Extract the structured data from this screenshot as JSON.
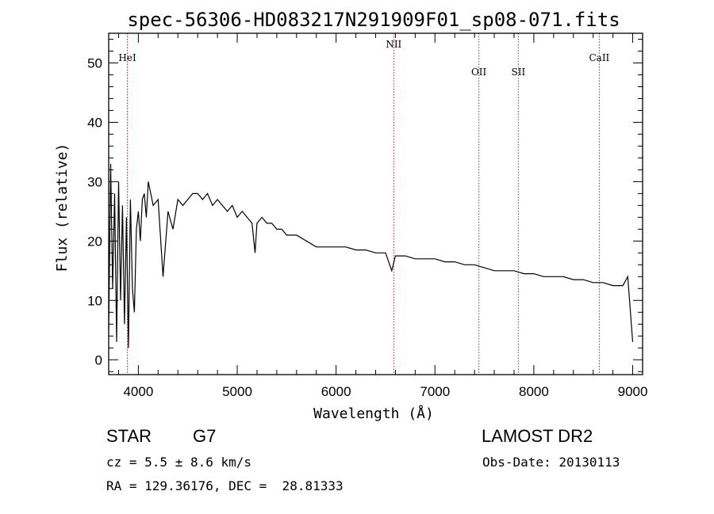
{
  "chart_data": {
    "type": "line",
    "title": "spec-56306-HD083217N291909F01_sp08-071.fits",
    "xlabel": "Wavelength (Å)",
    "ylabel": "Flux (relative)",
    "xlim": [
      3700,
      9100
    ],
    "ylim": [
      -2.5,
      55
    ],
    "x_ticks": [
      4000,
      5000,
      6000,
      7000,
      8000,
      9000
    ],
    "y_ticks": [
      0,
      10,
      20,
      30,
      40,
      50
    ],
    "grid": false,
    "line_color": "#000000",
    "marker_color": "#b22222",
    "series": [
      {
        "x": [
          3700,
          3720,
          3740,
          3760,
          3780,
          3800,
          3820,
          3840,
          3860,
          3880,
          3900,
          3920,
          3940,
          3960,
          3980,
          4000,
          4020,
          4040,
          4060,
          4080,
          4100,
          4150,
          4200,
          4250,
          4300,
          4350,
          4400,
          4450,
          4500,
          4550,
          4600,
          4650,
          4700,
          4750,
          4800,
          4850,
          4900,
          4950,
          5000,
          5050,
          5100,
          5150,
          5180,
          5200,
          5250,
          5300,
          5350,
          5400,
          5450,
          5500,
          5600,
          5700,
          5800,
          5900,
          6000,
          6100,
          6200,
          6300,
          6400,
          6500,
          6563,
          6600,
          6700,
          6800,
          6900,
          7000,
          7100,
          7200,
          7300,
          7400,
          7500,
          7600,
          7700,
          7800,
          7900,
          8000,
          8100,
          8200,
          8300,
          8400,
          8500,
          8600,
          8700,
          8800,
          8900,
          8950,
          9000
        ],
        "y": [
          5,
          33,
          12,
          28,
          3,
          30,
          10,
          26,
          6,
          24,
          2,
          27,
          12,
          8,
          22,
          25,
          20,
          27,
          28,
          24,
          30,
          26,
          27,
          14,
          25,
          22,
          27,
          26,
          27,
          28,
          28,
          27,
          28,
          26,
          27,
          26,
          25,
          26,
          24,
          25,
          24,
          23,
          18,
          23,
          24,
          23,
          23,
          22,
          22,
          21,
          21,
          20,
          19,
          19,
          19,
          19,
          18.5,
          18.5,
          18,
          18,
          15,
          17.5,
          17.5,
          17,
          17,
          17,
          16.5,
          16.5,
          16,
          16,
          15.5,
          15,
          15,
          15,
          14.5,
          14.5,
          14,
          14,
          14,
          13.5,
          13.5,
          13,
          13,
          12.5,
          12.5,
          14,
          3
        ]
      }
    ],
    "line_markers": [
      {
        "label": "HeI",
        "x": 3889
      },
      {
        "label": "NII",
        "x": 6583
      },
      {
        "label": "OII",
        "x": 7444
      },
      {
        "label": "SII",
        "x": 7843
      },
      {
        "label": "CaII",
        "x": 8662
      }
    ]
  },
  "info": {
    "object_class": "STAR",
    "subclass": "G7",
    "survey": "LAMOST DR2",
    "cz": "cz = 5.5 ± 8.6 km/s",
    "obs_date": "Obs-Date: 20130113",
    "coords": "RA = 129.36176, DEC =  28.81333"
  }
}
